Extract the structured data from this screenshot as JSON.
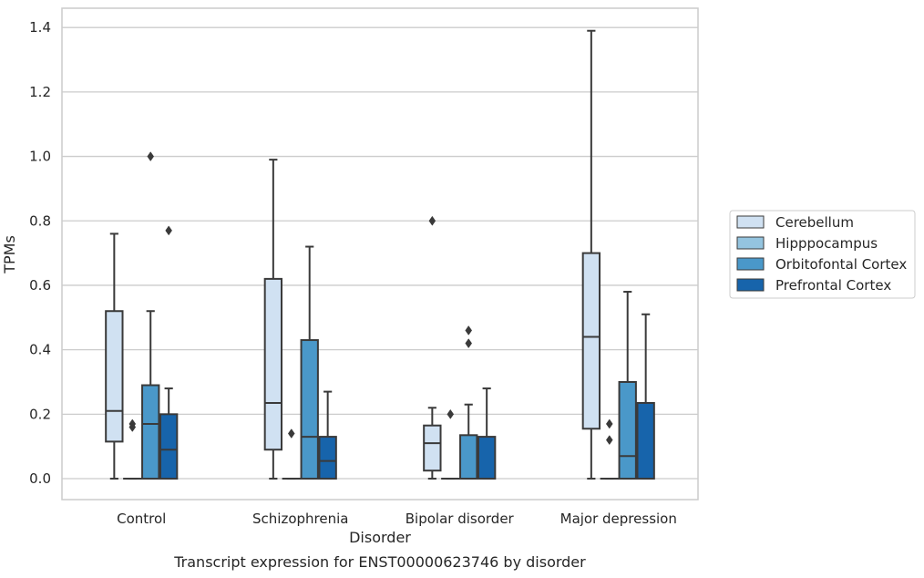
{
  "caption": "Transcript expression for ENST00000623746 by disorder",
  "chart_data": {
    "type": "box",
    "title": "",
    "xlabel": "Disorder",
    "ylabel": "TPMs",
    "ylim": [
      -0.065,
      1.46
    ],
    "yticks": [
      0.0,
      0.2,
      0.4,
      0.6,
      0.8,
      1.0,
      1.2,
      1.4
    ],
    "ytick_labels": [
      "0.0",
      "0.2",
      "0.4",
      "0.6",
      "0.8",
      "1.0",
      "1.2",
      "1.4"
    ],
    "grid": "horizontal",
    "legend_position": "right",
    "categories": [
      "Control",
      "Schizophrenia",
      "Bipolar disorder",
      "Major depression"
    ],
    "series": [
      {
        "name": "Cerebellum",
        "color": "#d0e1f2",
        "boxes": [
          {
            "whisker_low": 0.0,
            "q1": 0.115,
            "median": 0.21,
            "q3": 0.52,
            "whisker_high": 0.76,
            "outliers": []
          },
          {
            "whisker_low": 0.0,
            "q1": 0.09,
            "median": 0.235,
            "q3": 0.62,
            "whisker_high": 0.99,
            "outliers": []
          },
          {
            "whisker_low": 0.0,
            "q1": 0.025,
            "median": 0.11,
            "q3": 0.165,
            "whisker_high": 0.22,
            "outliers": [
              0.8
            ]
          },
          {
            "whisker_low": 0.0,
            "q1": 0.155,
            "median": 0.44,
            "q3": 0.7,
            "whisker_high": 1.39,
            "outliers": []
          }
        ]
      },
      {
        "name": "Hipppocampus",
        "color": "#94c4df",
        "boxes": [
          {
            "whisker_low": 0.0,
            "q1": 0.0,
            "median": 0.0,
            "q3": 0.0,
            "whisker_high": 0.0,
            "outliers": [
              0.16,
              0.17
            ]
          },
          {
            "whisker_low": 0.0,
            "q1": 0.0,
            "median": 0.0,
            "q3": 0.0,
            "whisker_high": 0.0,
            "outliers": [
              0.14
            ]
          },
          {
            "whisker_low": 0.0,
            "q1": 0.0,
            "median": 0.0,
            "q3": 0.0,
            "whisker_high": 0.0,
            "outliers": [
              0.2
            ]
          },
          {
            "whisker_low": 0.0,
            "q1": 0.0,
            "median": 0.0,
            "q3": 0.0,
            "whisker_high": 0.0,
            "outliers": [
              0.12,
              0.17
            ]
          }
        ]
      },
      {
        "name": "Orbitofontal Cortex",
        "color": "#4a98c9",
        "boxes": [
          {
            "whisker_low": 0.0,
            "q1": 0.0,
            "median": 0.17,
            "q3": 0.29,
            "whisker_high": 0.52,
            "outliers": [
              1.0
            ]
          },
          {
            "whisker_low": 0.0,
            "q1": 0.0,
            "median": 0.13,
            "q3": 0.43,
            "whisker_high": 0.72,
            "outliers": []
          },
          {
            "whisker_low": 0.0,
            "q1": 0.0,
            "median": 0.0,
            "q3": 0.135,
            "whisker_high": 0.23,
            "outliers": [
              0.42,
              0.46
            ]
          },
          {
            "whisker_low": 0.0,
            "q1": 0.0,
            "median": 0.07,
            "q3": 0.3,
            "whisker_high": 0.58,
            "outliers": []
          }
        ]
      },
      {
        "name": "Prefrontal Cortex",
        "color": "#1764ab",
        "boxes": [
          {
            "whisker_low": 0.0,
            "q1": 0.0,
            "median": 0.09,
            "q3": 0.2,
            "whisker_high": 0.28,
            "outliers": [
              0.77
            ]
          },
          {
            "whisker_low": 0.0,
            "q1": 0.0,
            "median": 0.055,
            "q3": 0.13,
            "whisker_high": 0.27,
            "outliers": []
          },
          {
            "whisker_low": 0.0,
            "q1": 0.0,
            "median": 0.0,
            "q3": 0.13,
            "whisker_high": 0.28,
            "outliers": []
          },
          {
            "whisker_low": 0.0,
            "q1": 0.0,
            "median": 0.0,
            "q3": 0.235,
            "whisker_high": 0.51,
            "outliers": []
          }
        ]
      }
    ]
  }
}
